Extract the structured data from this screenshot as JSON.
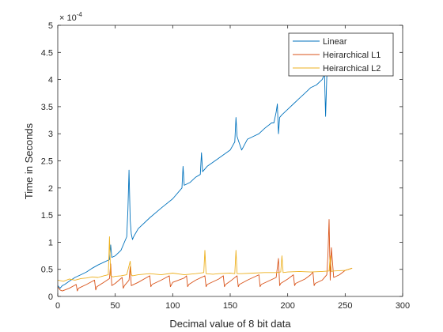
{
  "chart_data": {
    "type": "line",
    "title": "",
    "xlabel": "Decimal value of 8 bit data",
    "ylabel": "Time in Seconds",
    "y_exponent": "10^-4",
    "y_exponent_label": {
      "base": "× 10",
      "exp": "-4"
    },
    "xlim": [
      0,
      300
    ],
    "ylim": [
      0,
      5
    ],
    "ylim_units": "1e-4 s",
    "x_ticks": [
      0,
      50,
      100,
      150,
      200,
      250,
      300
    ],
    "y_ticks": [
      0,
      0.5,
      1,
      1.5,
      2,
      2.5,
      3,
      3.5,
      4,
      4.5,
      5
    ],
    "x_tick_labels": [
      "0",
      "50",
      "100",
      "150",
      "200",
      "250",
      "300"
    ],
    "y_tick_labels": [
      "0",
      "0.5",
      "1",
      "1.5",
      "2",
      "2.5",
      "3",
      "3.5",
      "4",
      "4.5",
      "5"
    ],
    "grid": false,
    "legend_position": "top-right",
    "series": [
      {
        "name": "Linear",
        "color": "#0072BD",
        "x": [
          0,
          2,
          4,
          6,
          8,
          10,
          15,
          20,
          25,
          30,
          35,
          40,
          45,
          46,
          47,
          50,
          55,
          60,
          61,
          62,
          63,
          64,
          65,
          66,
          70,
          80,
          90,
          100,
          108,
          109,
          110,
          115,
          120,
          124,
          125,
          126,
          130,
          140,
          150,
          154,
          155,
          156,
          157,
          160,
          165,
          170,
          175,
          180,
          186,
          188,
          190,
          191,
          192,
          193,
          195,
          200,
          205,
          210,
          215,
          220,
          225,
          230,
          232,
          233,
          234,
          235,
          236,
          240,
          245,
          250,
          255
        ],
        "values": [
          0.2,
          0.15,
          0.2,
          0.22,
          0.25,
          0.28,
          0.35,
          0.4,
          0.45,
          0.52,
          0.58,
          0.63,
          0.68,
          0.95,
          0.72,
          0.75,
          0.85,
          1.1,
          1.6,
          2.33,
          1.4,
          1.15,
          1.05,
          1.1,
          1.25,
          1.45,
          1.63,
          1.8,
          2.0,
          2.4,
          2.05,
          2.1,
          2.2,
          2.25,
          2.65,
          2.3,
          2.4,
          2.55,
          2.7,
          2.85,
          3.3,
          2.95,
          2.88,
          2.7,
          2.9,
          2.95,
          3.0,
          3.1,
          3.2,
          3.2,
          3.4,
          3.55,
          3.0,
          3.3,
          3.35,
          3.45,
          3.55,
          3.65,
          3.75,
          3.85,
          3.9,
          4.0,
          4.1,
          3.32,
          4.05,
          4.18,
          4.2,
          4.15,
          4.1,
          4.1,
          4.12
        ]
      },
      {
        "name": "Heirarchical L1",
        "color": "#D95319",
        "x": [
          0,
          2,
          4,
          10,
          16,
          17,
          18,
          25,
          32,
          33,
          34,
          40,
          45,
          46,
          47,
          50,
          56,
          57,
          58,
          62,
          63,
          64,
          70,
          80,
          81,
          82,
          90,
          97,
          98,
          99,
          100,
          110,
          112,
          113,
          114,
          120,
          128,
          129,
          130,
          140,
          144,
          145,
          146,
          150,
          156,
          157,
          158,
          165,
          175,
          176,
          177,
          185,
          190,
          192,
          193,
          194,
          200,
          205,
          206,
          207,
          215,
          220,
          222,
          223,
          224,
          230,
          234,
          235,
          236,
          237,
          238,
          240,
          245,
          250,
          256
        ],
        "values": [
          0.18,
          0.12,
          0.1,
          0.15,
          0.22,
          0.1,
          0.15,
          0.22,
          0.3,
          0.12,
          0.18,
          0.26,
          0.33,
          0.6,
          0.2,
          0.24,
          0.35,
          0.15,
          0.2,
          0.3,
          0.55,
          0.2,
          0.26,
          0.38,
          0.18,
          0.22,
          0.3,
          0.38,
          0.18,
          0.22,
          0.26,
          0.34,
          0.38,
          0.18,
          0.22,
          0.3,
          0.38,
          0.18,
          0.22,
          0.32,
          0.38,
          0.18,
          0.22,
          0.28,
          0.38,
          0.18,
          0.22,
          0.3,
          0.4,
          0.18,
          0.22,
          0.3,
          0.35,
          0.7,
          0.2,
          0.24,
          0.32,
          0.4,
          0.2,
          0.24,
          0.32,
          0.4,
          0.45,
          0.2,
          0.24,
          0.3,
          0.4,
          0.75,
          1.42,
          0.3,
          0.9,
          0.35,
          0.4,
          0.48,
          0.52
        ]
      },
      {
        "name": "Heirarchical L2",
        "color": "#EDB120",
        "x": [
          0,
          5,
          10,
          15,
          20,
          25,
          30,
          35,
          40,
          44,
          45,
          46,
          48,
          50,
          55,
          60,
          63,
          64,
          65,
          70,
          80,
          90,
          100,
          110,
          120,
          127,
          128,
          129,
          135,
          140,
          150,
          154,
          155,
          156,
          160,
          170,
          180,
          190,
          194,
          195,
          196,
          200,
          210,
          220,
          230,
          236,
          237,
          238,
          240,
          250,
          256
        ],
        "values": [
          0.3,
          0.28,
          0.32,
          0.3,
          0.33,
          0.34,
          0.36,
          0.35,
          0.38,
          0.4,
          1.1,
          0.38,
          0.36,
          0.37,
          0.38,
          0.4,
          0.65,
          0.4,
          0.38,
          0.4,
          0.42,
          0.4,
          0.43,
          0.4,
          0.42,
          0.44,
          0.85,
          0.42,
          0.41,
          0.42,
          0.43,
          0.42,
          0.85,
          0.42,
          0.42,
          0.43,
          0.44,
          0.44,
          0.45,
          0.75,
          0.44,
          0.45,
          0.46,
          0.45,
          0.46,
          0.47,
          0.75,
          0.46,
          0.47,
          0.48,
          0.52
        ]
      }
    ]
  }
}
